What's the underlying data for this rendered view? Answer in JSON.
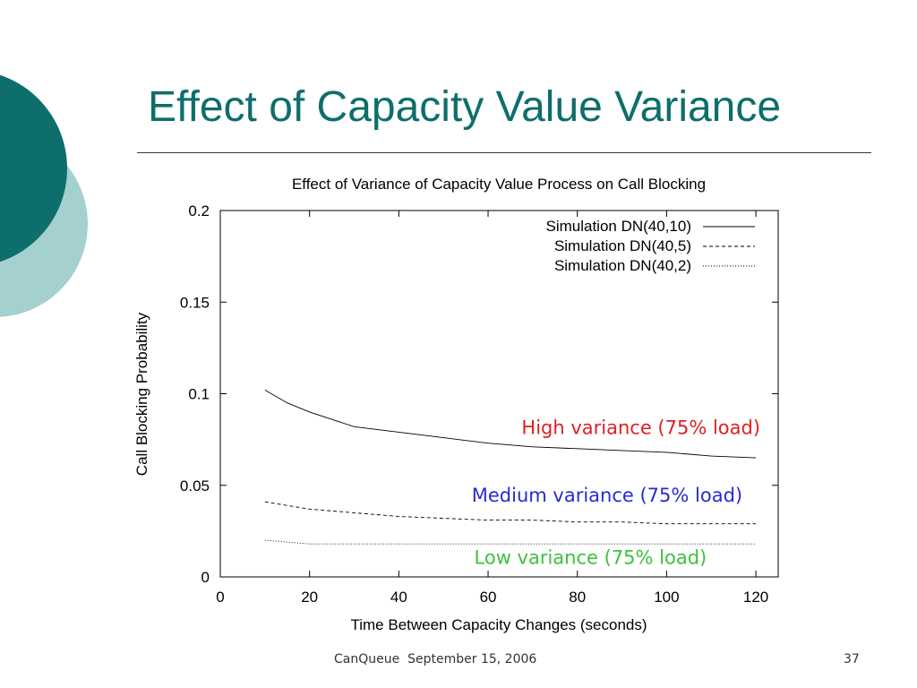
{
  "slide": {
    "title": "Effect of Capacity Value Variance",
    "footer": "CanQueue  September 15, 2006",
    "page_number": "37"
  },
  "colors": {
    "title": "#0e6e6b",
    "circle_dark": "#0e6e6b",
    "circle_light": "#a5d0d0",
    "high_annotation": "#e02020",
    "medium_annotation": "#2a2ad0",
    "low_annotation": "#3cc23c"
  },
  "chart_data": {
    "type": "line",
    "title": "Effect of Variance of Capacity Value Process on Call Blocking",
    "xlabel": "Time Between Capacity Changes (seconds)",
    "ylabel": "Call Blocking Probability",
    "xlim": [
      0,
      125
    ],
    "ylim": [
      0,
      0.2
    ],
    "xticks": [
      0,
      20,
      40,
      60,
      80,
      100,
      120
    ],
    "yticks": [
      0,
      0.05,
      0.1,
      0.15,
      0.2
    ],
    "xtick_labels": [
      "0",
      "20",
      "40",
      "60",
      "80",
      "100",
      "120"
    ],
    "ytick_labels": [
      "0",
      "0.05",
      "0.1",
      "0.15",
      "0.2"
    ],
    "grid": false,
    "legend_position": "top-right",
    "series": [
      {
        "name": "Simulation DN(40,10)",
        "style": "solid",
        "x": [
          10,
          15,
          20,
          30,
          40,
          50,
          60,
          70,
          80,
          90,
          100,
          110,
          120
        ],
        "y": [
          0.102,
          0.095,
          0.09,
          0.082,
          0.079,
          0.076,
          0.073,
          0.071,
          0.07,
          0.069,
          0.068,
          0.066,
          0.065
        ]
      },
      {
        "name": "Simulation DN(40,5)",
        "style": "dashed",
        "x": [
          10,
          15,
          20,
          30,
          40,
          50,
          60,
          70,
          80,
          90,
          100,
          110,
          120
        ],
        "y": [
          0.041,
          0.039,
          0.037,
          0.035,
          0.033,
          0.032,
          0.031,
          0.031,
          0.03,
          0.03,
          0.029,
          0.029,
          0.029
        ]
      },
      {
        "name": "Simulation DN(40,2)",
        "style": "dotted",
        "x": [
          10,
          15,
          20,
          30,
          40,
          50,
          60,
          70,
          80,
          90,
          100,
          110,
          120
        ],
        "y": [
          0.02,
          0.019,
          0.018,
          0.018,
          0.018,
          0.018,
          0.018,
          0.018,
          0.018,
          0.018,
          0.018,
          0.018,
          0.018
        ]
      }
    ],
    "annotations": [
      {
        "text": "High variance (75% load)",
        "x": 121,
        "y": 0.078,
        "color": "#e02020",
        "anchor": "end"
      },
      {
        "text": "Medium variance (75% load)",
        "x": 117,
        "y": 0.041,
        "color": "#2a2ad0",
        "anchor": "end"
      },
      {
        "text": "Low variance (75% load)",
        "x": 109,
        "y": 0.007,
        "color": "#3cc23c",
        "anchor": "end"
      }
    ]
  }
}
